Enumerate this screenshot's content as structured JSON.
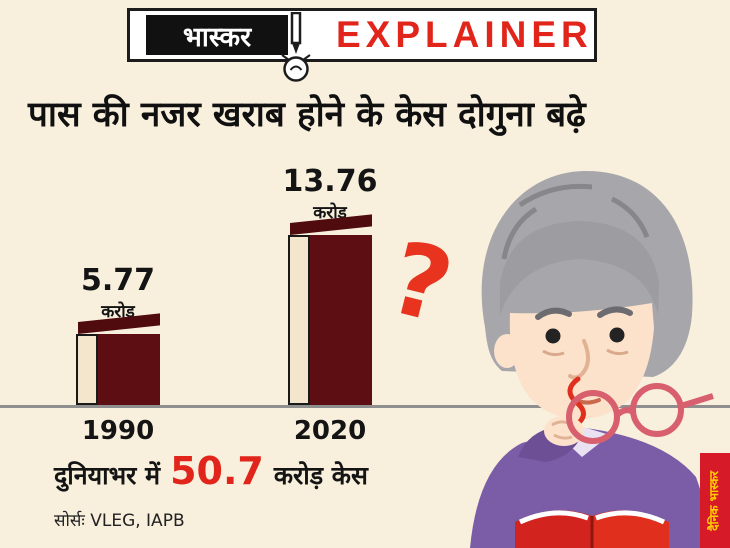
{
  "header": {
    "brand": "भास्कर",
    "title": "EXPLAINER"
  },
  "headline": "पास की नजर खराब होने के केस दोगुना बढ़े",
  "chart_data": {
    "type": "bar",
    "title": "पास की नजर खराब होने के केस दोगुना बढ़े",
    "categories": [
      "1990",
      "2020"
    ],
    "values": [
      5.77,
      13.76
    ],
    "value_labels": [
      "5.77",
      "13.76"
    ],
    "unit_label": "करोड़",
    "xlabel": "",
    "ylabel": "",
    "ylim": [
      0,
      14
    ],
    "grid": false,
    "legend": "none",
    "bar_color": "#5c0e12",
    "bar_front_color": "#f4e6cd"
  },
  "summary": {
    "prefix": "दुनियाभर में",
    "highlight": "50.7",
    "suffix": "करोड़ केस"
  },
  "source": "सोर्सः VLEG, IAPB",
  "decoration": {
    "question_mark": "?"
  },
  "logo": {
    "text": "दैनिक भास्कर"
  },
  "colors": {
    "background": "#f8efdd",
    "accent_red": "#e1251b",
    "bar_maroon": "#5c0e12",
    "bar_cream": "#f4e6cd",
    "axis_gray": "#8f8f8f",
    "logo_red": "#d71a28",
    "logo_yellow": "#ffd000",
    "shirt_purple": "#7b5ca6"
  }
}
